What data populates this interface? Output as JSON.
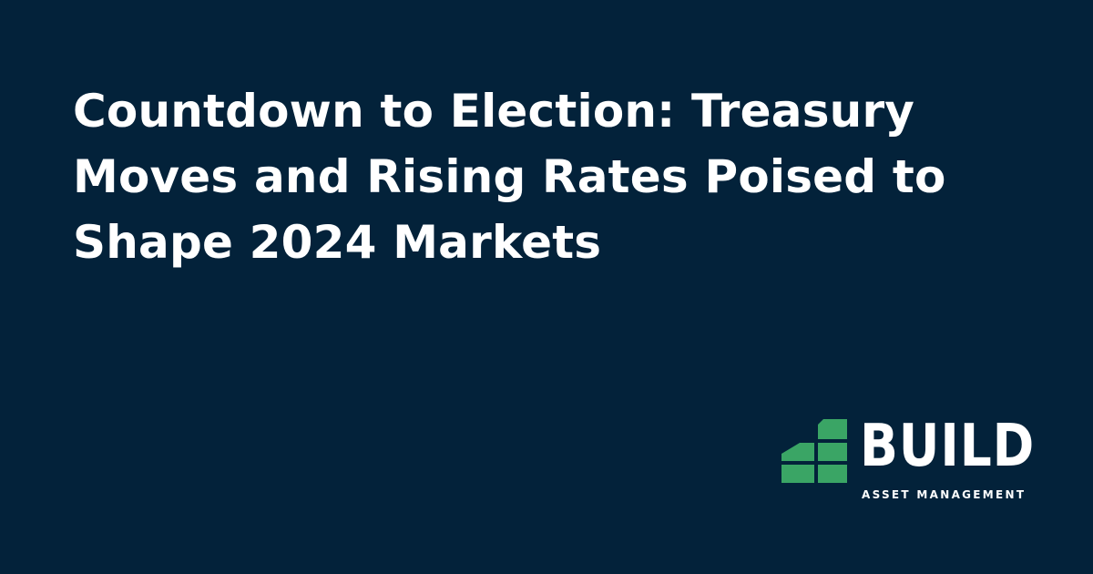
{
  "headline": {
    "lines": [
      "Countdown to Election: Treasury",
      "Moves and Rising Rates Poised to",
      "Shape 2024 Markets"
    ]
  },
  "brand": {
    "name": "BUILD",
    "tagline": "ASSET MANAGEMENT",
    "icon": "stacked-blocks-logo-icon",
    "accent_color": "#3aa565",
    "background_color": "#03223a",
    "text_color": "#ffffff"
  }
}
